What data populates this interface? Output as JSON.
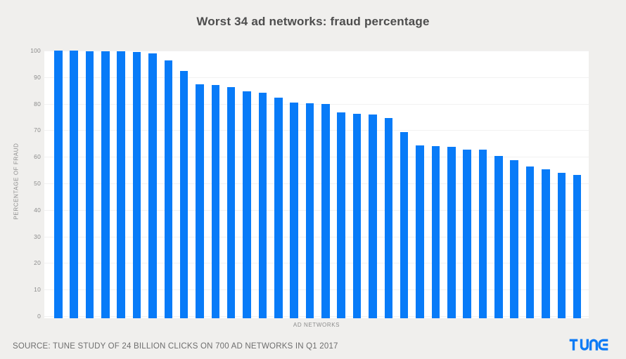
{
  "page": {
    "background": "#f0efed"
  },
  "source": {
    "text": "SOURCE: TUNE STUDY OF 24 BILLION CLICKS ON 700 AD NETWORKS IN Q1 2017"
  },
  "branding": {
    "logo_text": "TUNE",
    "logo_color": "#0d7bf5"
  },
  "colors": {
    "page_bg": "#f0efed",
    "plot_bg": "#ffffff",
    "bar": "#087bf8",
    "gridline": "#f1f1f1",
    "title_text": "#4d4d4d",
    "axis_text": "#8b8b8b",
    "source_text": "#6e6e6e"
  },
  "chart_data": {
    "type": "bar",
    "title": "Worst 34 ad networks: fraud percentage",
    "xlabel": "AD NETWORKS",
    "ylabel": "PERCENTAGE OF FRAUD",
    "ylim": [
      0,
      100
    ],
    "yticks": [
      0,
      10,
      20,
      30,
      40,
      50,
      60,
      70,
      80,
      90,
      100
    ],
    "grid": "horizontal",
    "legend": "none",
    "bar_color": "#087bf8",
    "n_bars": 34,
    "values": [
      99.9,
      99.9,
      99.8,
      99.8,
      99.8,
      99.5,
      98.9,
      96.2,
      92.2,
      87.2,
      87.0,
      86.2,
      84.6,
      84.0,
      82.4,
      80.5,
      80.2,
      80.0,
      76.7,
      76.2,
      76.0,
      74.5,
      69.2,
      64.3,
      64.0,
      63.8,
      62.8,
      62.7,
      60.3,
      58.8,
      56.4,
      55.2,
      53.9,
      53.3
    ]
  }
}
